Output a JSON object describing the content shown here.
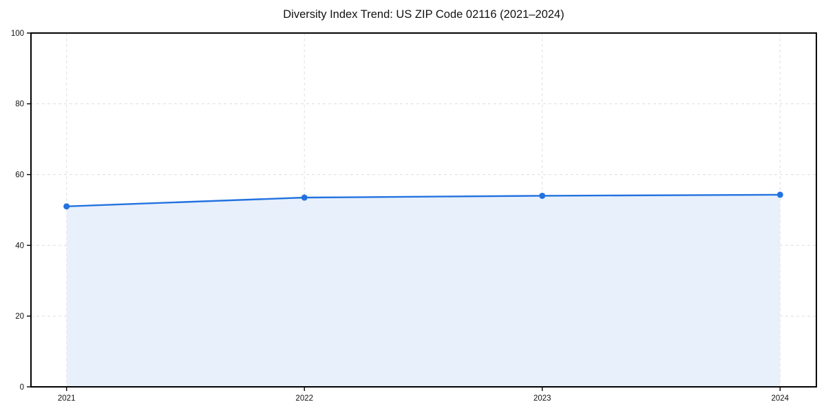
{
  "chart_data": {
    "type": "area",
    "title": "Diversity Index Trend: US ZIP Code 02116 (2021–2024)",
    "xlabel": "",
    "ylabel": "",
    "x": [
      2021,
      2022,
      2023,
      2024
    ],
    "xticks": [
      "2021",
      "2022",
      "2023",
      "2024"
    ],
    "yticks": [
      0,
      20,
      40,
      60,
      80,
      100
    ],
    "ylim": [
      0,
      100
    ],
    "series": [
      {
        "name": "Diversity Index",
        "values": [
          51.0,
          53.5,
          54.0,
          54.3
        ]
      }
    ],
    "grid": true,
    "grid_style": "dashed",
    "legend_position": "none",
    "colors": {
      "line": "#2272e0",
      "marker": "#2272e0",
      "fill": "#e8f0fb",
      "grid": "#dedede",
      "spine": "#000000",
      "text": "#111111",
      "background": "#ffffff"
    }
  }
}
